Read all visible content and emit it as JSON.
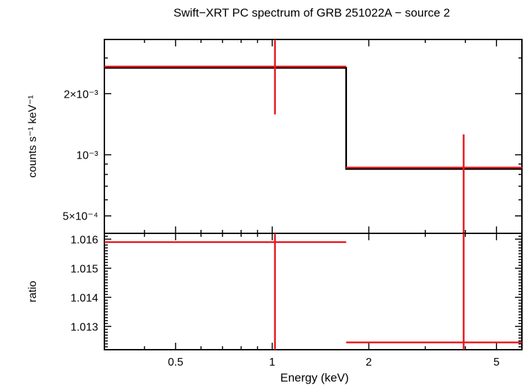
{
  "chart_data": {
    "type": "line",
    "title": "Swift−XRT PC spectrum of GRB 251022A − source 2",
    "xlabel": "Energy (keV)",
    "xscale": "log",
    "xlim": [
      0.3,
      6.0
    ],
    "x_ticks": [
      {
        "value": 0.5,
        "label": "0.5"
      },
      {
        "value": 1,
        "label": "1"
      },
      {
        "value": 2,
        "label": "2"
      },
      {
        "value": 5,
        "label": "5"
      }
    ],
    "colors": {
      "data": "#e8161c",
      "model": "#000000",
      "axes": "#000000"
    },
    "panels": [
      {
        "name": "spectrum",
        "ylabel": "counts s⁻¹ keV⁻¹",
        "yscale": "log",
        "ylim": [
          0.00041,
          0.0037
        ],
        "y_ticks": [
          {
            "value": 0.0005,
            "label": "5×10⁻⁴"
          },
          {
            "value": 0.001,
            "label": "10⁻³"
          },
          {
            "value": 0.002,
            "label": "2×10⁻³"
          }
        ],
        "model": [
          {
            "x_lo": 0.3,
            "x_hi": 1.7,
            "y": 0.00268
          },
          {
            "x_lo": 1.7,
            "x_hi": 6.0,
            "y": 0.000851
          }
        ],
        "data": [
          {
            "x_lo": 0.3,
            "x_hi": 1.7,
            "x": 1.02,
            "y": 0.00272,
            "y_lo": 0.00158,
            "y_hi": 0.0037
          },
          {
            "x_lo": 1.7,
            "x_hi": 6.0,
            "x": 3.95,
            "y": 0.000865,
            "y_lo": 0.00041,
            "y_hi": 0.00126
          }
        ]
      },
      {
        "name": "ratio",
        "ylabel": "ratio",
        "yscale": "linear",
        "ylim": [
          1.0122,
          1.0162
        ],
        "y_ticks": [
          {
            "value": 1.013,
            "label": "1.013"
          },
          {
            "value": 1.014,
            "label": "1.014"
          },
          {
            "value": 1.015,
            "label": "1.015"
          },
          {
            "value": 1.016,
            "label": "1.016"
          }
        ],
        "data": [
          {
            "x_lo": 0.3,
            "x_hi": 1.7,
            "x": 1.02,
            "y": 1.0159,
            "y_lo": 1.0122,
            "y_hi": 1.0162
          },
          {
            "x_lo": 1.7,
            "x_hi": 6.0,
            "x": 3.95,
            "y": 1.01245,
            "y_lo": 1.0122,
            "y_hi": 1.0162
          }
        ]
      }
    ]
  }
}
